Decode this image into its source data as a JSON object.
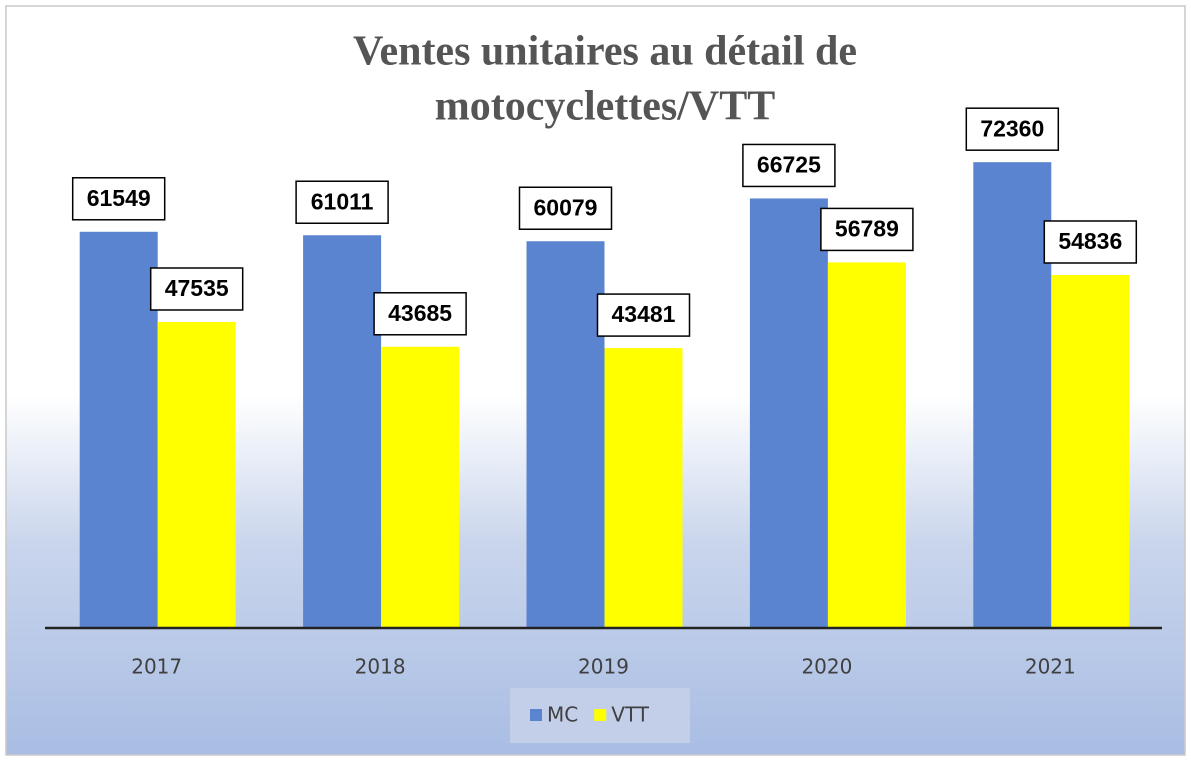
{
  "chart_data": {
    "type": "bar",
    "title": [
      "Ventes unitaires au détail de",
      "motocyclettes/VTT"
    ],
    "categories": [
      "2017",
      "2018",
      "2019",
      "2020",
      "2021"
    ],
    "series": [
      {
        "name": "MC",
        "color": "#5a84cf",
        "values": [
          61549,
          61011,
          60079,
          66725,
          72360
        ]
      },
      {
        "name": "VTT",
        "color": "#ffff00",
        "values": [
          47535,
          43685,
          43481,
          56789,
          54836
        ]
      }
    ],
    "ylim": [
      0,
      80000
    ],
    "legend": "bottom"
  }
}
